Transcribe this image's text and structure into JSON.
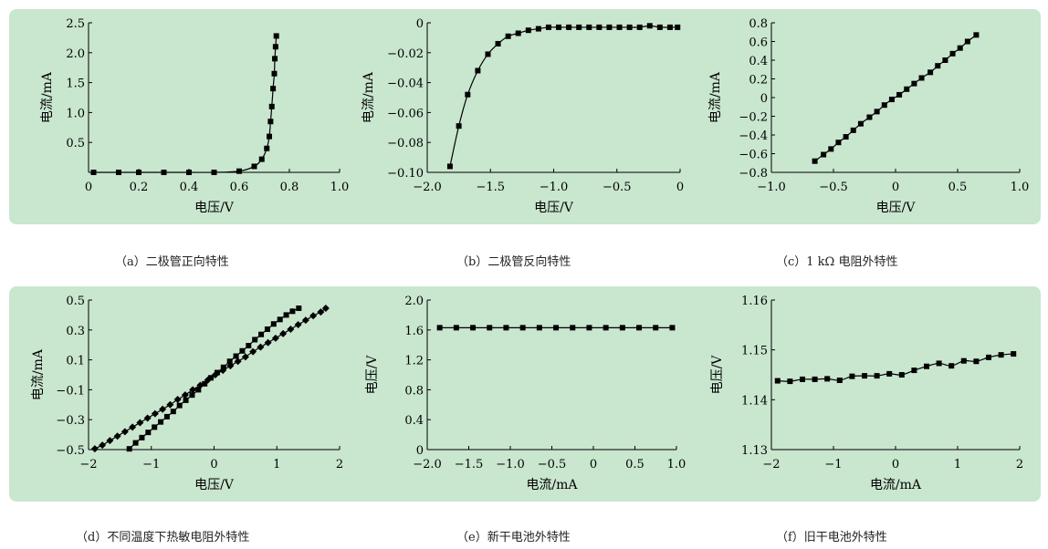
{
  "chart_data": [
    {
      "type": "line",
      "caption": "（a）二极管正向特性",
      "xlabel": "电压/V",
      "ylabel": "电流/mA",
      "xlim": [
        0,
        1.0
      ],
      "ylim": [
        0,
        2.5
      ],
      "xticks": [
        0,
        0.2,
        0.4,
        0.6,
        0.8,
        1.0
      ],
      "xtick_labels": [
        "0",
        "0.2",
        "0.4",
        "0.6",
        "0.8",
        "1.0"
      ],
      "yticks": [
        0.5,
        1.0,
        1.5,
        2.0,
        2.5
      ],
      "ytick_labels": [
        "0.5",
        "1.0",
        "1.5",
        "2.0",
        "2.5"
      ],
      "series": [
        {
          "marker": "square",
          "x": [
            0.02,
            0.12,
            0.2,
            0.3,
            0.4,
            0.5,
            0.6,
            0.66,
            0.69,
            0.71,
            0.72,
            0.725,
            0.73,
            0.735,
            0.74,
            0.742,
            0.745,
            0.748
          ],
          "y": [
            0.0,
            0.0,
            0.0,
            0.0,
            0.0,
            0.0,
            0.02,
            0.1,
            0.22,
            0.4,
            0.6,
            0.85,
            1.1,
            1.4,
            1.65,
            1.9,
            2.1,
            2.28
          ]
        }
      ]
    },
    {
      "type": "line",
      "caption": "（b）二极管反向特性",
      "xlabel": "电压/V",
      "ylabel": "电流/mA",
      "xlim": [
        -2.0,
        0
      ],
      "ylim": [
        -0.1,
        0
      ],
      "xticks": [
        -2.0,
        -1.5,
        -1.0,
        -0.5,
        0
      ],
      "xtick_labels": [
        "−2.0",
        "−1.5",
        "−1.0",
        "−0.5",
        "0"
      ],
      "yticks": [
        -0.1,
        -0.08,
        -0.06,
        -0.04,
        -0.02,
        0
      ],
      "ytick_labels": [
        "−0.10",
        "−0.08",
        "−0.06",
        "−0.04",
        "−0.02",
        "0"
      ],
      "series": [
        {
          "marker": "square",
          "x": [
            -1.82,
            -1.75,
            -1.68,
            -1.6,
            -1.52,
            -1.44,
            -1.36,
            -1.28,
            -1.2,
            -1.12,
            -1.04,
            -0.96,
            -0.88,
            -0.8,
            -0.72,
            -0.64,
            -0.56,
            -0.48,
            -0.4,
            -0.32,
            -0.24,
            -0.16,
            -0.08,
            -0.02
          ],
          "y": [
            -0.096,
            -0.069,
            -0.048,
            -0.032,
            -0.021,
            -0.014,
            -0.009,
            -0.007,
            -0.005,
            -0.004,
            -0.003,
            -0.003,
            -0.003,
            -0.003,
            -0.003,
            -0.003,
            -0.003,
            -0.003,
            -0.003,
            -0.003,
            -0.002,
            -0.003,
            -0.003,
            -0.003
          ]
        }
      ]
    },
    {
      "type": "line",
      "caption": "（c）1 kΩ 电阻外特性",
      "xlabel": "电压/V",
      "ylabel": "电流/mA",
      "xlim": [
        -1.0,
        1.0
      ],
      "ylim": [
        -0.8,
        0.8
      ],
      "xticks": [
        -1.0,
        -0.5,
        0,
        0.5,
        1.0
      ],
      "xtick_labels": [
        "−1.0",
        "−0.5",
        "0",
        "0.5",
        "1.0"
      ],
      "yticks": [
        -0.8,
        -0.6,
        -0.4,
        -0.2,
        0,
        0.2,
        0.4,
        0.6,
        0.8
      ],
      "ytick_labels": [
        "−0.8",
        "−0.6",
        "−0.4",
        "−0.2",
        "0",
        "0.2",
        "0.4",
        "0.6",
        "0.8"
      ],
      "series": [
        {
          "marker": "square",
          "x": [
            -0.65,
            -0.58,
            -0.52,
            -0.46,
            -0.4,
            -0.34,
            -0.28,
            -0.21,
            -0.15,
            -0.09,
            -0.03,
            0.03,
            0.09,
            0.15,
            0.21,
            0.28,
            0.34,
            0.4,
            0.46,
            0.52,
            0.58,
            0.65
          ],
          "y": [
            -0.68,
            -0.61,
            -0.55,
            -0.48,
            -0.42,
            -0.35,
            -0.28,
            -0.21,
            -0.15,
            -0.08,
            -0.02,
            0.03,
            0.09,
            0.15,
            0.21,
            0.27,
            0.34,
            0.4,
            0.47,
            0.53,
            0.6,
            0.67
          ]
        }
      ]
    },
    {
      "type": "line",
      "caption": "（d）不同温度下热敏电阻外特性",
      "xlabel": "电压/V",
      "ylabel": "电流/mA",
      "xlim": [
        -2,
        2
      ],
      "ylim": [
        -0.5,
        0.5
      ],
      "xticks": [
        -2,
        -1,
        0,
        1,
        2
      ],
      "xtick_labels": [
        "−2",
        "−1",
        "0",
        "1",
        "2"
      ],
      "yticks": [
        -0.5,
        -0.3,
        -0.1,
        0.1,
        0.3,
        0.5
      ],
      "ytick_labels": [
        "−0.5",
        "−0.3",
        "−0.1",
        "0.1",
        "0.3",
        "0.5"
      ],
      "series": [
        {
          "marker": "square",
          "x": [
            -1.35,
            -1.25,
            -1.15,
            -1.05,
            -0.95,
            -0.85,
            -0.75,
            -0.65,
            -0.55,
            -0.45,
            -0.35,
            -0.25,
            -0.15,
            -0.05,
            0.05,
            0.15,
            0.25,
            0.35,
            0.45,
            0.55,
            0.65,
            0.75,
            0.85,
            0.95,
            1.05,
            1.15,
            1.25,
            1.35
          ],
          "y": [
            -0.495,
            -0.455,
            -0.42,
            -0.385,
            -0.35,
            -0.315,
            -0.28,
            -0.245,
            -0.205,
            -0.17,
            -0.135,
            -0.1,
            -0.06,
            -0.02,
            0.015,
            0.05,
            0.09,
            0.125,
            0.16,
            0.195,
            0.235,
            0.27,
            0.305,
            0.34,
            0.37,
            0.4,
            0.425,
            0.445
          ]
        },
        {
          "marker": "diamond",
          "x": [
            -1.9,
            -1.78,
            -1.66,
            -1.54,
            -1.42,
            -1.3,
            -1.18,
            -1.06,
            -0.94,
            -0.82,
            -0.7,
            -0.58,
            -0.46,
            -0.34,
            -0.22,
            -0.1,
            0.02,
            0.14,
            0.26,
            0.38,
            0.5,
            0.62,
            0.74,
            0.86,
            0.98,
            1.1,
            1.22,
            1.34,
            1.46,
            1.58,
            1.7,
            1.78
          ],
          "y": [
            -0.495,
            -0.47,
            -0.44,
            -0.41,
            -0.38,
            -0.35,
            -0.32,
            -0.29,
            -0.26,
            -0.23,
            -0.2,
            -0.165,
            -0.135,
            -0.1,
            -0.07,
            -0.035,
            0.0,
            0.03,
            0.06,
            0.09,
            0.12,
            0.155,
            0.185,
            0.215,
            0.245,
            0.275,
            0.305,
            0.335,
            0.365,
            0.395,
            0.42,
            0.445
          ]
        }
      ]
    },
    {
      "type": "line",
      "caption": "（e）新干电池外特性",
      "xlabel": "电流/mA",
      "ylabel": "电压/V",
      "xlim": [
        -2.0,
        1.0
      ],
      "ylim": [
        0,
        2.0
      ],
      "xticks": [
        -2.0,
        -1.5,
        -1.0,
        -0.5,
        0,
        0.5,
        1.0
      ],
      "xtick_labels": [
        "−2.0",
        "−1.5",
        "−1.0",
        "−0.5",
        "0",
        "0.5",
        "1.0"
      ],
      "yticks": [
        0,
        0.4,
        0.8,
        1.2,
        1.6,
        2.0
      ],
      "ytick_labels": [
        "0",
        "0.4",
        "0.8",
        "1.2",
        "1.6",
        "2.0"
      ],
      "series": [
        {
          "marker": "square",
          "x": [
            -1.85,
            -1.65,
            -1.45,
            -1.25,
            -1.05,
            -0.85,
            -0.65,
            -0.45,
            -0.25,
            -0.05,
            0.15,
            0.35,
            0.55,
            0.75,
            0.95
          ],
          "y": [
            1.63,
            1.63,
            1.63,
            1.63,
            1.63,
            1.63,
            1.63,
            1.63,
            1.63,
            1.63,
            1.63,
            1.63,
            1.63,
            1.63,
            1.63
          ]
        }
      ]
    },
    {
      "type": "line",
      "caption": "（f）旧干电池外特性",
      "xlabel": "电流/mA",
      "ylabel": "电压/V",
      "xlim": [
        -2,
        2
      ],
      "ylim": [
        1.13,
        1.16
      ],
      "xticks": [
        -2,
        -1,
        0,
        1,
        2
      ],
      "xtick_labels": [
        "−2",
        "−1",
        "0",
        "1",
        "2"
      ],
      "yticks": [
        1.13,
        1.14,
        1.15,
        1.16
      ],
      "ytick_labels": [
        "1.13",
        "1.14",
        "1.15",
        "1.16"
      ],
      "series": [
        {
          "marker": "square",
          "x": [
            -1.9,
            -1.7,
            -1.5,
            -1.3,
            -1.1,
            -0.9,
            -0.7,
            -0.5,
            -0.3,
            -0.1,
            0.1,
            0.3,
            0.5,
            0.7,
            0.9,
            1.1,
            1.3,
            1.5,
            1.7,
            1.9
          ],
          "y": [
            1.1438,
            1.1437,
            1.1441,
            1.1441,
            1.1442,
            1.1439,
            1.1447,
            1.1448,
            1.1448,
            1.1452,
            1.145,
            1.1459,
            1.1467,
            1.1473,
            1.1468,
            1.1478,
            1.1477,
            1.1485,
            1.149,
            1.1492
          ]
        }
      ]
    }
  ]
}
